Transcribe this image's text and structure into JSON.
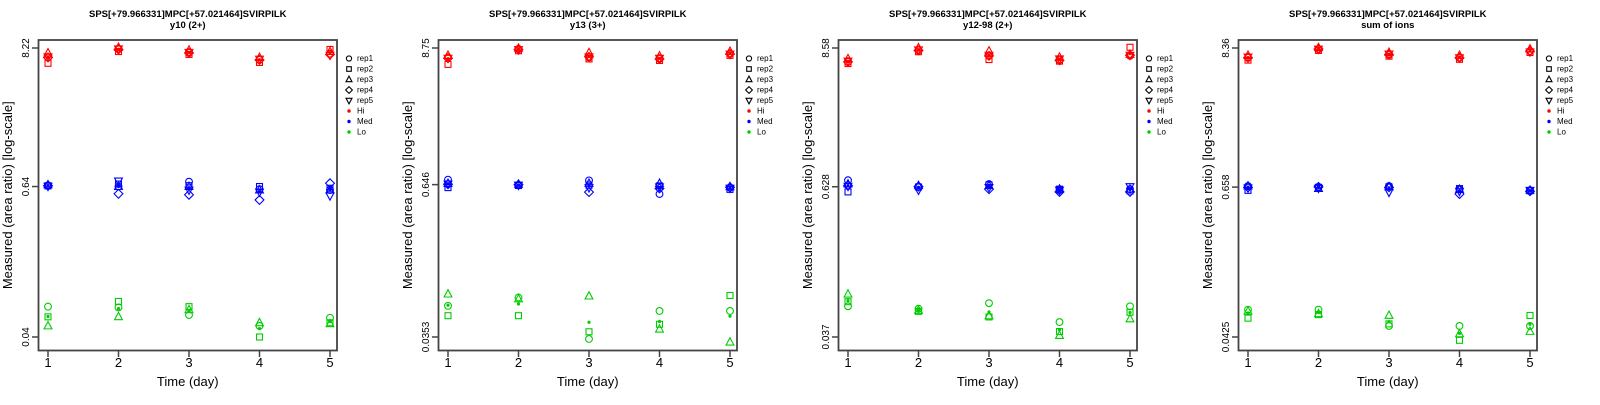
{
  "figure": {
    "xlabel": "Time (day)",
    "ylabel": "Measured (area ratio) [log-scale]",
    "x_tick_labels": [
      "1",
      "2",
      "3",
      "4",
      "5"
    ]
  },
  "legend": {
    "reps": [
      {
        "label": "rep1",
        "marker": "circle"
      },
      {
        "label": "rep2",
        "marker": "square"
      },
      {
        "label": "rep3",
        "marker": "triangle-up"
      },
      {
        "label": "rep4",
        "marker": "diamond"
      },
      {
        "label": "rep5",
        "marker": "triangle-down"
      }
    ],
    "levels": [
      {
        "label": "Hi",
        "color": "#ff0000"
      },
      {
        "label": "Med",
        "color": "#0000ff"
      },
      {
        "label": "Lo",
        "color": "#00cc00"
      }
    ]
  },
  "colors": {
    "hi": "#ff0000",
    "med": "#0000ff",
    "lo": "#00cc00",
    "frame": "#444444"
  },
  "chart_data": [
    {
      "type": "scatter",
      "title": "SPS[+79.966331]MPC[+57.021464]SVIRPILK",
      "subtitle": "y10 (2+)",
      "x": [
        1,
        2,
        3,
        4,
        5
      ],
      "yscale": "log",
      "ytick_labels": [
        "8.22",
        "0.64",
        "0.04"
      ],
      "ytick_values": [
        8.22,
        0.64,
        0.04
      ],
      "series": [
        {
          "name": "Hi",
          "color": "#ff0000",
          "reps": {
            "rep1": [
              6.9,
              8.1,
              7.6,
              6.6,
              7.4
            ],
            "rep2": [
              6.2,
              7.7,
              7.3,
              6.3,
              8.0
            ],
            "rep3": [
              7.5,
              8.3,
              7.9,
              6.9,
              7.7
            ],
            "rep4": [
              6.9,
              8.0,
              7.5,
              6.6,
              7.3
            ],
            "rep5": [
              7.0,
              8.1,
              7.6,
              6.7,
              7.2
            ]
          }
        },
        {
          "name": "Med",
          "color": "#0000ff",
          "reps": {
            "rep1": [
              0.655,
              0.64,
              0.7,
              0.61,
              0.6
            ],
            "rep2": [
              0.648,
              0.67,
              0.65,
              0.64,
              0.62
            ],
            "rep3": [
              0.66,
              0.64,
              0.64,
              0.6,
              0.6
            ],
            "rep4": [
              0.65,
              0.56,
              0.55,
              0.5,
              0.68
            ],
            "rep5": [
              0.645,
              0.71,
              0.6,
              0.58,
              0.54
            ]
          }
        },
        {
          "name": "Lo",
          "color": "#00cc00",
          "reps": {
            "rep1": [
              0.07,
              0.069,
              0.06,
              0.049,
              0.057
            ],
            "rep2": [
              0.058,
              0.077,
              0.07,
              0.04,
              0.052
            ],
            "rep3": [
              0.049,
              0.058,
              0.066,
              0.052,
              0.051
            ]
          }
        }
      ]
    },
    {
      "type": "scatter",
      "title": "SPS[+79.966331]MPC[+57.021464]SVIRPILK",
      "subtitle": "y13 (3+)",
      "x": [
        1,
        2,
        3,
        4,
        5
      ],
      "yscale": "log",
      "ytick_labels": [
        "8.75",
        "0.646",
        "0.0353"
      ],
      "ytick_values": [
        8.75,
        0.646,
        0.0353
      ],
      "series": [
        {
          "name": "Hi",
          "color": "#ff0000",
          "reps": {
            "rep1": [
              7.3,
              8.6,
              7.3,
              7.2,
              7.9
            ],
            "rep2": [
              6.4,
              8.3,
              7.1,
              6.9,
              7.6
            ],
            "rep3": [
              7.6,
              8.7,
              8.0,
              7.5,
              8.2
            ],
            "rep4": [
              7.2,
              8.5,
              7.4,
              7.1,
              7.8
            ],
            "rep5": [
              7.2,
              8.5,
              7.4,
              7.2,
              7.8
            ]
          }
        },
        {
          "name": "Med",
          "color": "#0000ff",
          "reps": {
            "rep1": [
              0.71,
              0.64,
              0.7,
              0.54,
              0.61
            ],
            "rep2": [
              0.61,
              0.635,
              0.64,
              0.63,
              0.59
            ],
            "rep3": [
              0.66,
              0.65,
              0.66,
              0.66,
              0.62
            ],
            "rep4": [
              0.65,
              0.645,
              0.56,
              0.6,
              0.615
            ],
            "rep5": [
              0.655,
              0.64,
              0.61,
              0.62,
              0.605
            ]
          }
        },
        {
          "name": "Lo",
          "color": "#00cc00",
          "reps": {
            "rep1": [
              0.064,
              0.075,
              0.034,
              0.058,
              0.058
            ],
            "rep2": [
              0.053,
              0.053,
              0.039,
              0.045,
              0.078
            ],
            "rep3": [
              0.08,
              0.073,
              0.077,
              0.041,
              0.032
            ]
          }
        }
      ]
    },
    {
      "type": "scatter",
      "title": "SPS[+79.966331]MPC[+57.021464]SVIRPILK",
      "subtitle": "y12-98 (2+)",
      "x": [
        1,
        2,
        3,
        4,
        5
      ],
      "yscale": "log",
      "ytick_labels": [
        "8.58",
        "0.628",
        "0.037"
      ],
      "ytick_values": [
        8.58,
        0.628,
        0.037
      ],
      "series": [
        {
          "name": "Hi",
          "color": "#ff0000",
          "reps": {
            "rep1": [
              6.6,
              8.2,
              7.4,
              6.9,
              7.4
            ],
            "rep2": [
              6.4,
              8.0,
              6.9,
              6.7,
              8.7
            ],
            "rep3": [
              7.0,
              8.6,
              8.1,
              7.2,
              7.6
            ],
            "rep4": [
              6.6,
              8.2,
              7.4,
              6.8,
              7.5
            ],
            "rep5": [
              6.7,
              8.3,
              7.5,
              7.0,
              7.5
            ]
          }
        },
        {
          "name": "Med",
          "color": "#0000ff",
          "reps": {
            "rep1": [
              0.71,
              0.63,
              0.66,
              0.59,
              0.6
            ],
            "rep2": [
              0.57,
              0.625,
              0.65,
              0.6,
              0.58
            ],
            "rep3": [
              0.66,
              0.64,
              0.64,
              0.6,
              0.6
            ],
            "rep4": [
              0.64,
              0.63,
              0.6,
              0.57,
              0.57
            ],
            "rep5": [
              0.635,
              0.59,
              0.62,
              0.59,
              0.63
            ]
          }
        },
        {
          "name": "Lo",
          "color": "#00cc00",
          "reps": {
            "rep1": [
              0.066,
              0.063,
              0.07,
              0.049,
              0.066
            ],
            "rep2": [
              0.072,
              0.06,
              0.054,
              0.041,
              0.059
            ],
            "rep3": [
              0.083,
              0.061,
              0.055,
              0.038,
              0.052
            ]
          }
        }
      ]
    },
    {
      "type": "scatter",
      "title": "SPS[+79.966331]MPC[+57.021464]SVIRPILK",
      "subtitle": "sum of ions",
      "x": [
        1,
        2,
        3,
        4,
        5
      ],
      "yscale": "log",
      "ytick_labels": [
        "8.36",
        "0.658",
        "0.0425"
      ],
      "ytick_values": [
        8.36,
        0.658,
        0.0425
      ],
      "series": [
        {
          "name": "Hi",
          "color": "#ff0000",
          "reps": {
            "rep1": [
              7.0,
              8.2,
              7.4,
              7.0,
              7.9
            ],
            "rep2": [
              6.7,
              8.0,
              7.2,
              6.8,
              7.7
            ],
            "rep3": [
              7.3,
              8.4,
              7.7,
              7.3,
              8.2
            ],
            "rep4": [
              7.0,
              8.2,
              7.4,
              7.0,
              7.9
            ],
            "rep5": [
              7.1,
              8.2,
              7.5,
              7.0,
              7.8
            ]
          }
        },
        {
          "name": "Med",
          "color": "#0000ff",
          "reps": {
            "rep1": [
              0.67,
              0.66,
              0.67,
              0.63,
              0.62
            ],
            "rep2": [
              0.62,
              0.655,
              0.66,
              0.64,
              0.615
            ],
            "rep3": [
              0.67,
              0.64,
              0.66,
              0.63,
              0.62
            ],
            "rep4": [
              0.655,
              0.66,
              0.655,
              0.58,
              0.61
            ],
            "rep5": [
              0.65,
              0.645,
              0.6,
              0.61,
              0.62
            ]
          }
        },
        {
          "name": "Lo",
          "color": "#00cc00",
          "reps": {
            "rep1": [
              0.07,
              0.07,
              0.052,
              0.052,
              0.052
            ],
            "rep2": [
              0.06,
              0.064,
              0.054,
              0.04,
              0.063
            ],
            "rep3": [
              0.068,
              0.065,
              0.063,
              0.045,
              0.047
            ]
          }
        }
      ]
    }
  ]
}
